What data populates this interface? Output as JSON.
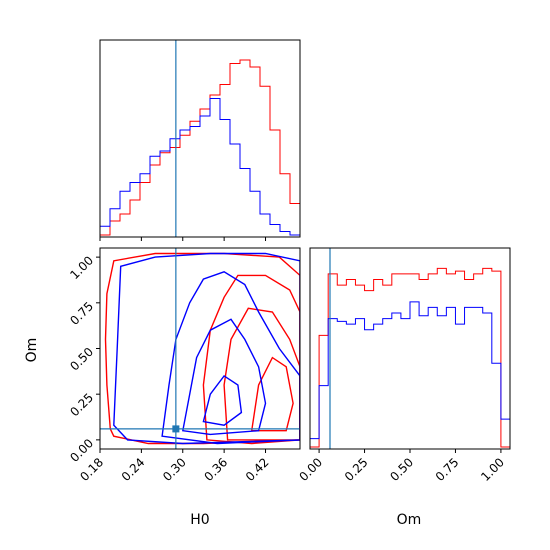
{
  "chart_data": {
    "type": "corner",
    "parameters": [
      "H0",
      "Om"
    ],
    "truths": {
      "H0": 0.29,
      "Om": 0.06
    },
    "colors": {
      "series_a": "#ff0000",
      "series_b": "#0000ff",
      "truth": "#1f77b4"
    },
    "grid": false,
    "panels": [
      {
        "id": "h0-marginal",
        "type": "histogram",
        "x_range": [
          0.18,
          0.47
        ],
        "bin_edges": [
          0.18,
          0.1945,
          0.209,
          0.2235,
          0.238,
          0.2525,
          0.267,
          0.2815,
          0.296,
          0.3105,
          0.325,
          0.3395,
          0.354,
          0.3685,
          0.383,
          0.3975,
          0.412,
          0.4265,
          0.441,
          0.4555,
          0.47
        ],
        "series": [
          {
            "values": [
              0.0,
              0.08,
              0.12,
              0.2,
              0.3,
              0.4,
              0.47,
              0.5,
              0.57,
              0.65,
              0.72,
              0.8,
              0.86,
              0.98,
              1.0,
              0.96,
              0.85,
              0.6,
              0.35,
              0.18
            ]
          },
          {
            "values": [
              0.05,
              0.15,
              0.25,
              0.3,
              0.35,
              0.45,
              0.48,
              0.55,
              0.6,
              0.62,
              0.68,
              0.78,
              0.66,
              0.52,
              0.38,
              0.25,
              0.12,
              0.06,
              0.02,
              0.0
            ]
          }
        ]
      },
      {
        "id": "om-marginal",
        "type": "histogram",
        "x_range": [
          -0.05,
          1.05
        ],
        "x_ticks": [
          "0.00",
          "0.25",
          "0.50",
          "0.75",
          "1.00"
        ],
        "bin_edges": [
          -0.05,
          0.0,
          0.05,
          0.1,
          0.15,
          0.2,
          0.25,
          0.3,
          0.35,
          0.4,
          0.45,
          0.5,
          0.55,
          0.6,
          0.65,
          0.7,
          0.75,
          0.8,
          0.85,
          0.9,
          0.95,
          1.0,
          1.05
        ],
        "series": [
          {
            "values": [
              0,
              0.4,
              0.62,
              0.58,
              0.6,
              0.58,
              0.56,
              0.6,
              0.58,
              0.62,
              0.62,
              0.62,
              0.6,
              0.62,
              0.64,
              0.62,
              0.63,
              0.6,
              0.62,
              0.64,
              0.63,
              0.0
            ]
          },
          {
            "values": [
              0.03,
              0.22,
              0.46,
              0.45,
              0.44,
              0.46,
              0.42,
              0.44,
              0.46,
              0.48,
              0.46,
              0.52,
              0.47,
              0.5,
              0.47,
              0.5,
              0.44,
              0.5,
              0.5,
              0.48,
              0.3,
              0.1
            ]
          }
        ]
      },
      {
        "id": "joint",
        "type": "contour",
        "xlabel": "H0",
        "ylabel": "Om",
        "x_range": [
          0.18,
          0.47
        ],
        "y_range": [
          -0.05,
          1.05
        ],
        "x_ticks": [
          "0.18",
          "0.24",
          "0.30",
          "0.36",
          "0.42"
        ],
        "y_ticks": [
          "0.00",
          "0.25",
          "0.50",
          "0.75",
          "1.00"
        ],
        "series": [
          {
            "levels": [
              [
                [
                  0.195,
                  0.06
                ],
                [
                  0.19,
                  0.3
                ],
                [
                  0.188,
                  0.55
                ],
                [
                  0.19,
                  0.8
                ],
                [
                  0.2,
                  0.98
                ],
                [
                  0.26,
                  1.02
                ],
                [
                  0.36,
                  1.02
                ],
                [
                  0.44,
                  1.0
                ],
                [
                  0.47,
                  0.9
                ],
                [
                  0.47,
                  0.0
                ],
                [
                  0.33,
                  -0.02
                ],
                [
                  0.25,
                  -0.02
                ],
                [
                  0.2,
                  0.02
                ],
                [
                  0.195,
                  0.06
                ]
              ],
              [
                [
                  0.335,
                  0.0
                ],
                [
                  0.33,
                  0.3
                ],
                [
                  0.34,
                  0.6
                ],
                [
                  0.36,
                  0.78
                ],
                [
                  0.38,
                  0.9
                ],
                [
                  0.42,
                  0.9
                ],
                [
                  0.455,
                  0.82
                ],
                [
                  0.47,
                  0.7
                ],
                [
                  0.47,
                  0.0
                ],
                [
                  0.4,
                  -0.02
                ],
                [
                  0.335,
                  0.0
                ]
              ],
              [
                [
                  0.365,
                  0.0
                ],
                [
                  0.36,
                  0.3
                ],
                [
                  0.37,
                  0.55
                ],
                [
                  0.395,
                  0.72
                ],
                [
                  0.43,
                  0.7
                ],
                [
                  0.455,
                  0.55
                ],
                [
                  0.47,
                  0.4
                ],
                [
                  0.47,
                  0.0
                ],
                [
                  0.365,
                  0.0
                ]
              ],
              [
                [
                  0.4,
                  0.05
                ],
                [
                  0.41,
                  0.3
                ],
                [
                  0.43,
                  0.45
                ],
                [
                  0.45,
                  0.4
                ],
                [
                  0.46,
                  0.2
                ],
                [
                  0.45,
                  0.05
                ],
                [
                  0.4,
                  0.05
                ]
              ]
            ]
          },
          {
            "levels": [
              [
                [
                  0.2,
                  0.08
                ],
                [
                  0.205,
                  0.5
                ],
                [
                  0.21,
                  0.95
                ],
                [
                  0.26,
                  1.0
                ],
                [
                  0.34,
                  1.02
                ],
                [
                  0.42,
                  1.02
                ],
                [
                  0.47,
                  0.98
                ],
                [
                  0.47,
                  0.0
                ],
                [
                  0.3,
                  -0.02
                ],
                [
                  0.22,
                  0.0
                ],
                [
                  0.2,
                  0.08
                ]
              ],
              [
                [
                  0.27,
                  0.02
                ],
                [
                  0.28,
                  0.3
                ],
                [
                  0.29,
                  0.55
                ],
                [
                  0.31,
                  0.75
                ],
                [
                  0.33,
                  0.88
                ],
                [
                  0.36,
                  0.92
                ],
                [
                  0.39,
                  0.85
                ],
                [
                  0.41,
                  0.7
                ],
                [
                  0.44,
                  0.5
                ],
                [
                  0.47,
                  0.35
                ],
                [
                  0.47,
                  0.0
                ],
                [
                  0.35,
                  -0.02
                ],
                [
                  0.27,
                  0.02
                ]
              ],
              [
                [
                  0.3,
                  0.05
                ],
                [
                  0.31,
                  0.25
                ],
                [
                  0.32,
                  0.45
                ],
                [
                  0.34,
                  0.6
                ],
                [
                  0.37,
                  0.66
                ],
                [
                  0.39,
                  0.55
                ],
                [
                  0.41,
                  0.4
                ],
                [
                  0.42,
                  0.2
                ],
                [
                  0.41,
                  0.05
                ],
                [
                  0.34,
                  0.03
                ],
                [
                  0.3,
                  0.05
                ]
              ],
              [
                [
                  0.33,
                  0.1
                ],
                [
                  0.34,
                  0.25
                ],
                [
                  0.36,
                  0.35
                ],
                [
                  0.38,
                  0.3
                ],
                [
                  0.385,
                  0.15
                ],
                [
                  0.36,
                  0.08
                ],
                [
                  0.33,
                  0.1
                ]
              ]
            ]
          }
        ]
      }
    ]
  }
}
